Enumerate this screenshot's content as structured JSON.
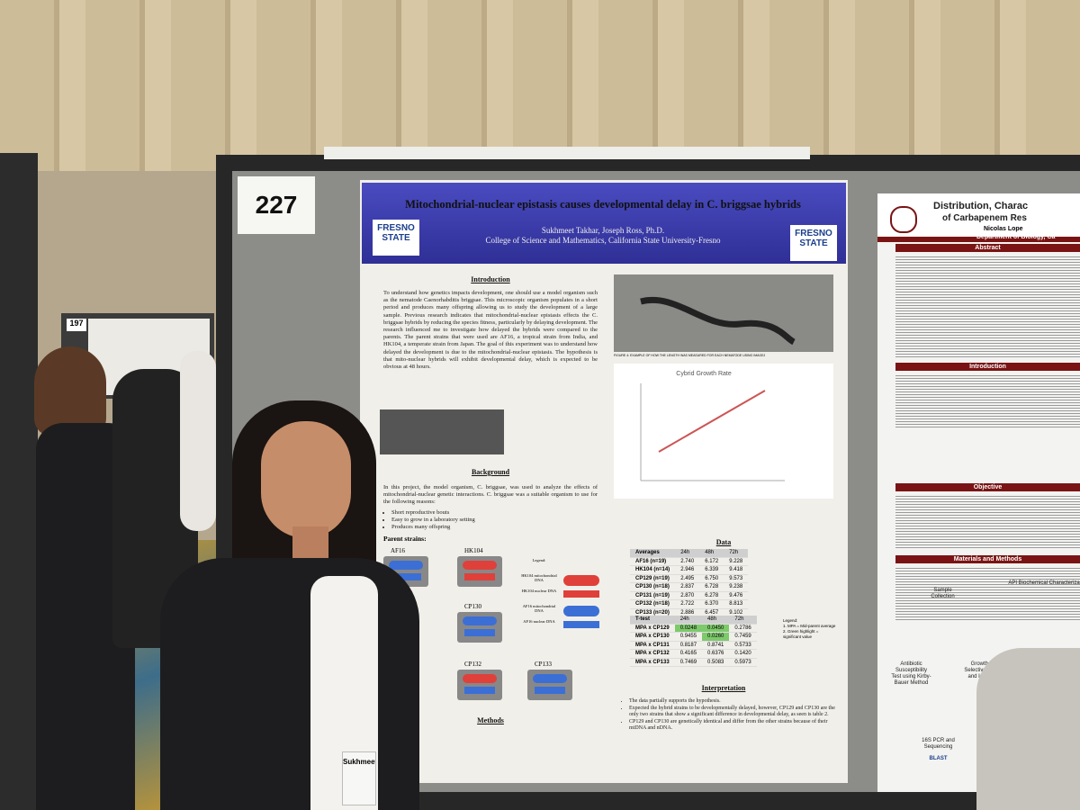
{
  "board_number": "227",
  "background_board_number": "197",
  "poster": {
    "title": "Mitochondrial-nuclear epistasis causes developmental delay in C. briggsae hybrids",
    "authors": "Sukhmeet Takhar, Joseph Ross, Ph.D.",
    "affiliation": "College of Science and Mathematics, California State University-Fresno",
    "logo": "FRESNO STATE",
    "introduction": {
      "heading": "Introduction",
      "text": "To understand how genetics impacts development, one should use a model organism such as the nematode Caenorhabditis briggsae. This microscopic organism populates in a short period and produces many offspring allowing us to study the development of a large sample. Previous research indicates that mitochondrial-nuclear epistasis effects the C. briggsae hybrids by reducing the species fitness, particularly by delaying development. The research influenced me to investigate how delayed the hybrids were compared to the parents. The parent strains that were used are AF16, a tropical strain from India, and HK104, a temperate strain from Japan. The goal of this experiment was to understand how delayed the development is due to the mitochondrial-nuclear epistasis. The hypothesis is that mito-nuclear hybrids will exhibit developmental delay, which is expected to be obvious at 48 hours."
    },
    "background": {
      "heading": "Background",
      "text": "In this project, the model organism, C. briggsae, was used to analyze the effects of mitochondrial-nuclear genetic interactions. C. briggsae was a suitable organism to use for the following reasons:",
      "bullets": [
        "Short reproductive bouts",
        "Easy to grow in a laboratory setting",
        "Produces many offspring"
      ],
      "parent_strains": "Parent strains:",
      "strains": [
        "AF16",
        "HK104",
        "CP130",
        "CP132",
        "CP133"
      ],
      "legend": [
        "Legend:",
        "HK104 mitochondrial DNA",
        "HK104 nuclear DNA",
        "AF16 mitochondrial DNA",
        "AF16 nuclear DNA"
      ]
    },
    "methods": {
      "heading": "Methods"
    },
    "chart_title": "Cybrid Growth Rate",
    "figure4": "FIGURE 4: EXAMPLE OF HOW THE LENGTH WAS MEASURED FOR EACH NEMATODE USING IMAGEJ",
    "data": {
      "heading": "Data",
      "averages": {
        "header": [
          "Averages",
          "24h",
          "48h",
          "72h"
        ],
        "rows": [
          [
            "AF16 (n=19)",
            "2.740",
            "6.172",
            "9.228"
          ],
          [
            "HK104 (n=14)",
            "2.946",
            "6.339",
            "9.418"
          ],
          [
            "CP129 (n=19)",
            "2.495",
            "6.750",
            "9.573"
          ],
          [
            "CP130 (n=18)",
            "2.837",
            "6.728",
            "9.238"
          ],
          [
            "CP131 (n=19)",
            "2.870",
            "6.278",
            "9.476"
          ],
          [
            "CP132 (n=18)",
            "2.722",
            "6.370",
            "8.813"
          ],
          [
            "CP133 (n=20)",
            "2.886",
            "6.457",
            "9.102"
          ]
        ]
      },
      "ttest": {
        "header": [
          "T-test",
          "24h",
          "48h",
          "72h"
        ],
        "rows": [
          [
            "MPA x CP129",
            "0.0248",
            "0.0450",
            "0.2786"
          ],
          [
            "MPA x CP130",
            "0.9455",
            "0.0260",
            "0.7459"
          ],
          [
            "MPA x CP131",
            "0.8187",
            "0.8741",
            "0.5733"
          ],
          [
            "MPA x CP132",
            "0.4165",
            "0.6376",
            "0.1420"
          ],
          [
            "MPA x CP133",
            "0.7469",
            "0.5083",
            "0.5973"
          ]
        ],
        "highlight": [
          [
            0,
            1
          ],
          [
            0,
            2
          ],
          [
            1,
            2
          ]
        ],
        "legend": [
          "Legend:",
          "1. MPA = Mid-parent average",
          "2. Green highlight = significant value"
        ]
      }
    },
    "interpretation": {
      "heading": "Interpretation",
      "bullets": [
        "The data partially supports the hypothesis.",
        "Expected the hybrid strains to be developmentally delayed, however, CP129 and CP130 are the only two strains that show a significant difference in developmental delay, as seen is table 2.",
        "CP129 and CP130 are genetically identical and differ from the other strains because of their mtDNA and nDNA."
      ]
    }
  },
  "neighbor_poster": {
    "title": "Distribution, Charac",
    "title_line2": "of Carbapenem Res",
    "author": "Nicolas Lope",
    "department": "Department of Biology, Ca",
    "sections": [
      "Abstract",
      "Introduction",
      "Objective",
      "Materials and Methods"
    ],
    "labels": [
      "Sample Collection",
      "API Biochemical Characteriza",
      "Antibiotic Susceptibility Test using Kirby-Bauer Method",
      "Growth on Selective Media and Isolation",
      "16S PCR and Sequencing",
      "BLAST"
    ]
  },
  "badge": "Sukhmeet"
}
